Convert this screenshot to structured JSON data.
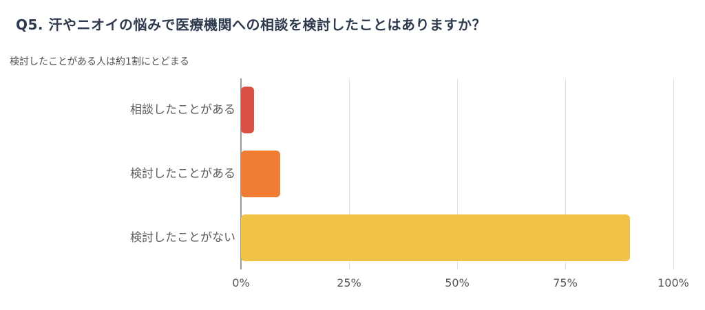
{
  "header": {
    "title": "Q5. 汗やニオイの悩みで医療機関への相談を検討したことはありますか？",
    "subtitle": "検討したことがある人は約1割にとどまる"
  },
  "chart_data": {
    "type": "bar",
    "orientation": "horizontal",
    "title": "Q5. 汗やニオイの悩みで医療機関への相談を検討したことはありますか？",
    "subtitle": "検討したことがある人は約1割にとどまる",
    "categories": [
      "相談したことがある",
      "検討したことがある",
      "検討したことがない"
    ],
    "values": [
      3,
      9,
      90
    ],
    "colors": [
      "#d94f43",
      "#ef7d33",
      "#f0c246"
    ],
    "xlim": [
      0,
      100
    ],
    "x_ticks": [
      0,
      25,
      50,
      75,
      100
    ],
    "x_tick_labels": [
      "0%",
      "25%",
      "50%",
      "75%",
      "100%"
    ],
    "grid": true,
    "legend": "none"
  }
}
